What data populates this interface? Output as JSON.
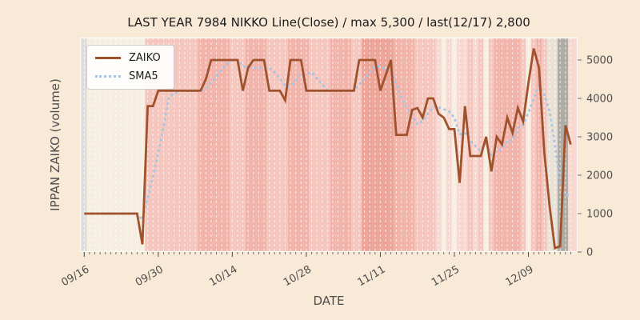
{
  "chart_data": {
    "type": "line",
    "title": "LAST YEAR 7984 NIKKO Line(Close) / max 5,300 / last(12/17) 2,800",
    "xlabel": "DATE",
    "ylabel": "IPPAN ZAIKO (volume)",
    "max_value": 5300,
    "last_date": "12/17",
    "last_value": 2800,
    "y_axis_side": "right",
    "y_ticks": [
      0,
      1000,
      2000,
      3000,
      4000,
      5000
    ],
    "ylim": [
      0,
      5583
    ],
    "x_tick_labels": [
      "09/16",
      "09/30",
      "10/14",
      "10/28",
      "11/11",
      "11/25",
      "12/09"
    ],
    "x_tick_days": [
      0,
      14,
      28,
      42,
      56,
      70,
      84
    ],
    "n_days": 93,
    "x_start_label": "09/16",
    "x_end_label": "12/17",
    "grid": "vertical-daily-white-dashed",
    "legend_position": "upper-left",
    "series": [
      {
        "name": "ZAIKO",
        "style": "solid",
        "color": "#a0522d",
        "values": [
          1000,
          1000,
          1000,
          1000,
          1000,
          1000,
          1000,
          1000,
          1000,
          1000,
          1000,
          200,
          3800,
          3800,
          4200,
          4200,
          4200,
          4200,
          4200,
          4200,
          4200,
          4200,
          4200,
          4500,
          5000,
          5000,
          5000,
          5000,
          5000,
          5000,
          4200,
          4800,
          5000,
          5000,
          5000,
          4200,
          4200,
          4200,
          3950,
          5000,
          5000,
          5000,
          4200,
          4200,
          4200,
          4200,
          4200,
          4200,
          4200,
          4200,
          4200,
          4200,
          5000,
          5000,
          5000,
          5000,
          4200,
          4600,
          5000,
          3050,
          3050,
          3050,
          3700,
          3750,
          3500,
          4000,
          4000,
          3600,
          3500,
          3200,
          3200,
          1800,
          3800,
          2500,
          2500,
          2500,
          3000,
          2100,
          3000,
          2800,
          3500,
          3100,
          3750,
          3400,
          4400,
          5300,
          4800,
          2600,
          1200,
          100,
          150,
          3300,
          2800
        ]
      },
      {
        "name": "SMA5",
        "style": "dotted",
        "color": "#a6c5e6",
        "derived": "5-day moving average of ZAIKO"
      }
    ],
    "background_bands": {
      "palette": {
        "G": "#dedddb",
        "g": "#e8e7ea",
        "C": "#e9e1d5",
        "D": "#afaba5",
        "0": "#f6eee1",
        "1": "#f8d8d0",
        "2": "#f5c6be",
        "3": "#f1b3aa",
        "4": "#eda498"
      },
      "day_levels": "G00000000000222222222233333322233332222333322223333224444443333222210101121202333332023 2CCDD1g"
    }
  },
  "style": {
    "figure_bg": "#f9ead7",
    "plot_border": "#fbfaf7",
    "tick_color": "#4d4d4d",
    "title_color": "#1b1b1b",
    "gridline_color": "rgba(255,255,255,0.75)"
  },
  "legend": {
    "item1": "ZAIKO",
    "item2": "SMA5"
  }
}
